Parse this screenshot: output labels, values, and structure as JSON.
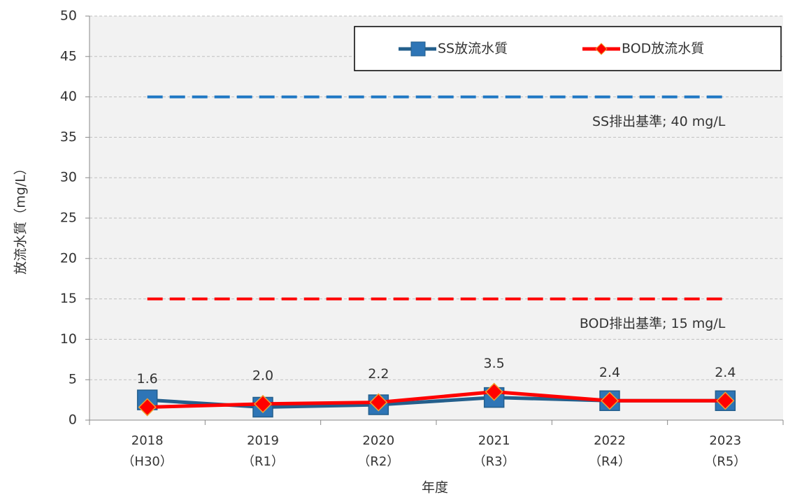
{
  "chart_data": {
    "type": "line",
    "y_label": "放流水質（mg/L）",
    "x_label": "年度",
    "categories": [
      "2018\n（H30）",
      "2019\n（R1）",
      "2020\n（R2）",
      "2021\n（R3）",
      "2022\n（R4）",
      "2023\n（R5）"
    ],
    "series": [
      {
        "name": "SS放流水質",
        "color": "#245f8c",
        "marker": "square",
        "values": [
          2.5,
          1.6,
          1.9,
          2.8,
          2.4,
          2.4
        ]
      },
      {
        "name": "BOD放流水質",
        "color": "#ff0000",
        "marker": "diamond",
        "values": [
          1.6,
          2.0,
          2.2,
          3.5,
          2.4,
          2.4
        ],
        "value_labels": [
          "1.6",
          "2.0",
          "2.2",
          "3.5",
          "2.4",
          "2.4"
        ]
      }
    ],
    "reference_lines": [
      {
        "value": 40,
        "label": "SS排出基準; 40 mg/L",
        "color": "#1f77c4"
      },
      {
        "value": 15,
        "label": "BOD排出基準; 15 mg/L",
        "color": "#ff0000"
      }
    ],
    "ylim": [
      0,
      50
    ],
    "yticks": [
      0,
      5,
      10,
      15,
      20,
      25,
      30,
      35,
      40,
      45,
      50
    ],
    "grid": true,
    "legend": "top-right"
  }
}
